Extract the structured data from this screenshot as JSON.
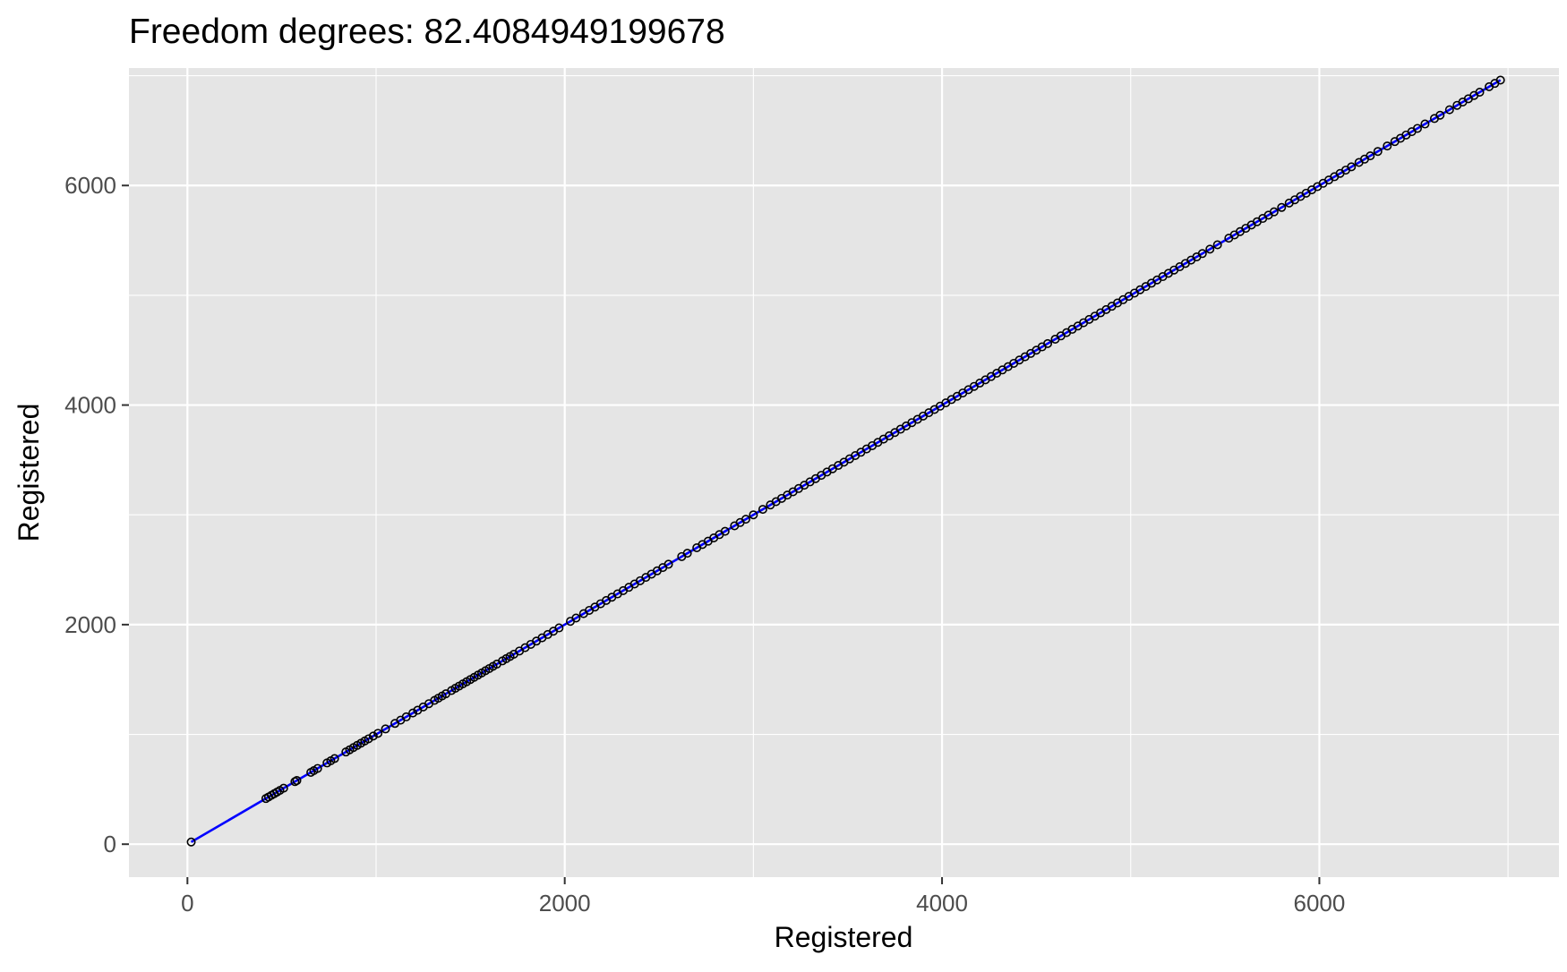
{
  "chart_data": {
    "type": "scatter",
    "title": "Freedom degrees: 82.4084949199678",
    "xlabel": "Registered",
    "ylabel": "Registered",
    "xlim": [
      -310,
      7270
    ],
    "ylim": [
      -300,
      7070
    ],
    "x_ticks": [
      0,
      2000,
      4000,
      6000
    ],
    "x_tick_labels": [
      "0",
      "2000",
      "4000",
      "6000"
    ],
    "y_ticks": [
      0,
      2000,
      4000,
      6000
    ],
    "y_tick_labels": [
      "0",
      "2000",
      "4000",
      "6000"
    ],
    "x_minor_ticks": [
      1000,
      3000,
      5000,
      7000
    ],
    "y_minor_ticks": [
      1000,
      3000,
      5000,
      7000
    ],
    "grid": true,
    "legend": "none",
    "colors": {
      "panel_background": "#e5e5e5",
      "grid": "#ffffff",
      "points": "#000000",
      "fit_line": "#0000ff"
    },
    "series": [
      {
        "kind": "points",
        "x": [
          20,
          416,
          430,
          445,
          460,
          475,
          490,
          510,
          570,
          580,
          654,
          670,
          690,
          740,
          760,
          780,
          840,
          860,
          880,
          900,
          920,
          940,
          960,
          985,
          1010,
          1050,
          1100,
          1130,
          1160,
          1195,
          1220,
          1250,
          1280,
          1310,
          1330,
          1350,
          1370,
          1400,
          1420,
          1440,
          1460,
          1480,
          1500,
          1520,
          1540,
          1560,
          1580,
          1600,
          1620,
          1640,
          1670,
          1690,
          1710,
          1730,
          1760,
          1790,
          1820,
          1850,
          1880,
          1910,
          1940,
          1970,
          2030,
          2060,
          2100,
          2130,
          2160,
          2190,
          2220,
          2250,
          2280,
          2310,
          2340,
          2370,
          2400,
          2430,
          2460,
          2490,
          2520,
          2550,
          2620,
          2650,
          2700,
          2730,
          2760,
          2790,
          2820,
          2850,
          2900,
          2930,
          2960,
          3000,
          3050,
          3090,
          3120,
          3150,
          3180,
          3210,
          3240,
          3270,
          3300,
          3330,
          3360,
          3390,
          3420,
          3450,
          3480,
          3510,
          3540,
          3570,
          3600,
          3630,
          3660,
          3690,
          3720,
          3750,
          3780,
          3810,
          3840,
          3870,
          3900,
          3930,
          3960,
          3990,
          4020,
          4050,
          4080,
          4110,
          4140,
          4170,
          4200,
          4230,
          4260,
          4290,
          4320,
          4350,
          4380,
          4410,
          4440,
          4470,
          4500,
          4530,
          4560,
          4600,
          4630,
          4660,
          4690,
          4720,
          4750,
          4780,
          4810,
          4840,
          4870,
          4900,
          4930,
          4960,
          4990,
          5020,
          5050,
          5080,
          5110,
          5140,
          5170,
          5200,
          5230,
          5260,
          5290,
          5320,
          5350,
          5380,
          5420,
          5460,
          5520,
          5550,
          5580,
          5610,
          5640,
          5670,
          5700,
          5730,
          5760,
          5800,
          5840,
          5870,
          5900,
          5930,
          5960,
          5990,
          6020,
          6050,
          6080,
          6110,
          6140,
          6170,
          6210,
          6240,
          6270,
          6310,
          6360,
          6400,
          6430,
          6460,
          6490,
          6520,
          6560,
          6610,
          6640,
          6690,
          6730,
          6760,
          6790,
          6820,
          6850,
          6900,
          6930,
          6960
        ],
        "y": [
          20,
          416,
          430,
          445,
          460,
          475,
          490,
          510,
          570,
          580,
          654,
          670,
          690,
          740,
          760,
          780,
          840,
          860,
          880,
          900,
          920,
          940,
          960,
          985,
          1010,
          1050,
          1100,
          1130,
          1160,
          1195,
          1220,
          1250,
          1280,
          1310,
          1330,
          1350,
          1370,
          1400,
          1420,
          1440,
          1460,
          1480,
          1500,
          1520,
          1540,
          1560,
          1580,
          1600,
          1620,
          1640,
          1670,
          1690,
          1710,
          1730,
          1760,
          1790,
          1820,
          1850,
          1880,
          1910,
          1940,
          1970,
          2030,
          2060,
          2100,
          2130,
          2160,
          2190,
          2220,
          2250,
          2280,
          2310,
          2340,
          2370,
          2400,
          2430,
          2460,
          2490,
          2520,
          2550,
          2620,
          2650,
          2700,
          2730,
          2760,
          2790,
          2820,
          2850,
          2900,
          2930,
          2960,
          3000,
          3050,
          3090,
          3120,
          3150,
          3180,
          3210,
          3240,
          3270,
          3300,
          3330,
          3360,
          3390,
          3420,
          3450,
          3480,
          3510,
          3540,
          3570,
          3600,
          3630,
          3660,
          3690,
          3720,
          3750,
          3780,
          3810,
          3840,
          3870,
          3900,
          3930,
          3960,
          3990,
          4020,
          4050,
          4080,
          4110,
          4140,
          4170,
          4200,
          4230,
          4260,
          4290,
          4320,
          4350,
          4380,
          4410,
          4440,
          4470,
          4500,
          4530,
          4560,
          4600,
          4630,
          4660,
          4690,
          4720,
          4750,
          4780,
          4810,
          4840,
          4870,
          4900,
          4930,
          4960,
          4990,
          5020,
          5050,
          5080,
          5110,
          5140,
          5170,
          5200,
          5230,
          5260,
          5290,
          5320,
          5350,
          5380,
          5420,
          5460,
          5520,
          5550,
          5580,
          5610,
          5640,
          5670,
          5700,
          5730,
          5760,
          5800,
          5840,
          5870,
          5900,
          5930,
          5960,
          5990,
          6020,
          6050,
          6080,
          6110,
          6140,
          6170,
          6210,
          6240,
          6270,
          6310,
          6360,
          6400,
          6430,
          6460,
          6490,
          6520,
          6560,
          6610,
          6640,
          6690,
          6730,
          6760,
          6790,
          6820,
          6850,
          6900,
          6930,
          6960
        ]
      },
      {
        "kind": "line",
        "x": [
          20,
          416,
          6960
        ],
        "y": [
          20,
          416,
          6960
        ]
      }
    ]
  }
}
